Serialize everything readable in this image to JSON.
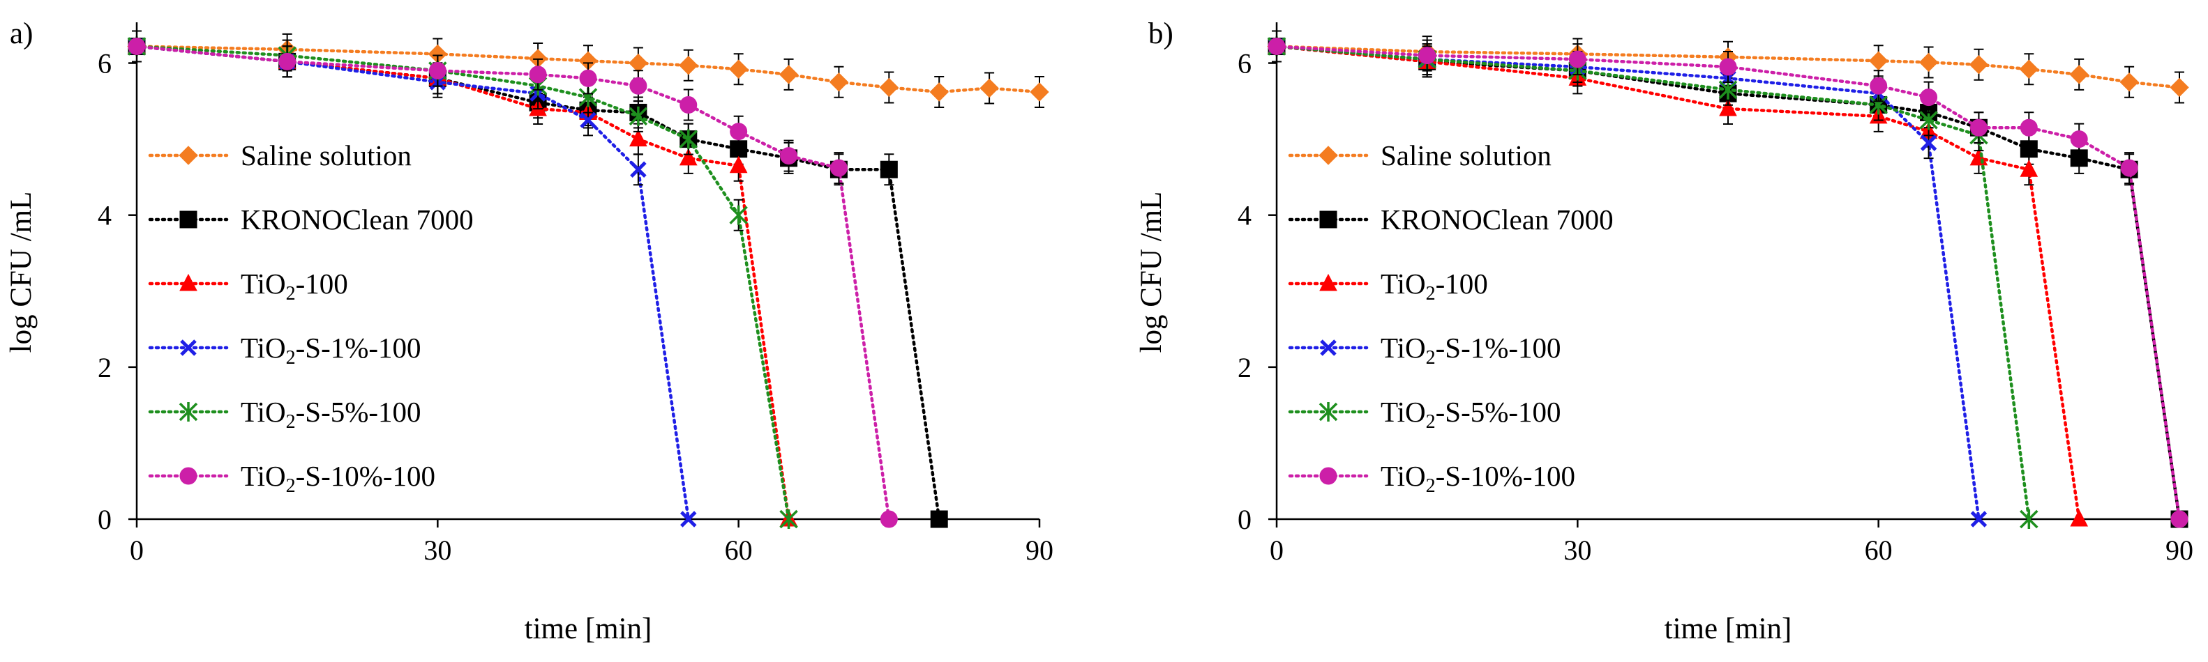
{
  "chart_data": [
    {
      "type": "line",
      "panel_label": "a)",
      "xlabel": "time [min]",
      "ylabel": "log CFU /mL",
      "xlim": [
        0,
        90
      ],
      "ylim": [
        0,
        6.5
      ],
      "xticks": [
        "0",
        "30",
        "60",
        "90"
      ],
      "yticks": [
        "0",
        "2",
        "4",
        "6"
      ],
      "legend_position": "left",
      "series": [
        {
          "name": "Saline solution",
          "marker": "diamond",
          "color": "#f47c20",
          "x": [
            0,
            15,
            30,
            40,
            45,
            50,
            55,
            60,
            65,
            70,
            75,
            80,
            85,
            90
          ],
          "y": [
            6.22,
            6.18,
            6.12,
            6.06,
            6.03,
            6.0,
            5.97,
            5.92,
            5.85,
            5.75,
            5.68,
            5.62,
            5.67,
            5.62
          ]
        },
        {
          "name": "KRONOClean 7000",
          "marker": "square",
          "color": "#000000",
          "x": [
            0,
            15,
            30,
            40,
            45,
            50,
            55,
            60,
            65,
            70,
            75,
            80
          ],
          "y": [
            6.22,
            6.02,
            5.8,
            5.48,
            5.38,
            5.35,
            5.0,
            4.87,
            4.75,
            4.6,
            4.6,
            0.0
          ]
        },
        {
          "name": "TiO2-100",
          "marker": "triangle",
          "color": "#ff0000",
          "x": [
            0,
            15,
            30,
            40,
            45,
            50,
            55,
            60,
            65
          ],
          "y": [
            6.22,
            6.02,
            5.8,
            5.4,
            5.35,
            5.0,
            4.75,
            4.65,
            0.0
          ]
        },
        {
          "name": "TiO2-S-1%-100",
          "marker": "x",
          "color": "#1f1fe6",
          "x": [
            0,
            15,
            30,
            40,
            45,
            50,
            55
          ],
          "y": [
            6.22,
            6.02,
            5.75,
            5.6,
            5.25,
            4.6,
            0.0
          ]
        },
        {
          "name": "TiO2-S-5%-100",
          "marker": "asterisk",
          "color": "#1e8f1e",
          "x": [
            0,
            15,
            30,
            40,
            45,
            50,
            55,
            60,
            65
          ],
          "y": [
            6.22,
            6.1,
            5.9,
            5.7,
            5.55,
            5.3,
            5.0,
            4.0,
            0.0
          ]
        },
        {
          "name": "TiO2-S-10%-100",
          "marker": "circle",
          "color": "#cc1fa8",
          "x": [
            0,
            15,
            30,
            40,
            45,
            50,
            55,
            60,
            65,
            70,
            75
          ],
          "y": [
            6.22,
            6.02,
            5.9,
            5.85,
            5.8,
            5.7,
            5.45,
            5.1,
            4.78,
            4.62,
            0.0
          ]
        }
      ]
    },
    {
      "type": "line",
      "panel_label": "b)",
      "xlabel": "time [min]",
      "ylabel": "log CFU /mL",
      "xlim": [
        0,
        90
      ],
      "ylim": [
        0,
        6.5
      ],
      "xticks": [
        "0",
        "30",
        "60",
        "90"
      ],
      "yticks": [
        "0",
        "2",
        "4",
        "6"
      ],
      "legend_position": "left",
      "series": [
        {
          "name": "Saline solution",
          "marker": "diamond",
          "color": "#f47c20",
          "x": [
            0,
            15,
            30,
            45,
            60,
            65,
            70,
            75,
            80,
            85,
            90
          ],
          "y": [
            6.22,
            6.15,
            6.12,
            6.08,
            6.03,
            6.01,
            5.98,
            5.92,
            5.85,
            5.75,
            5.68
          ]
        },
        {
          "name": "KRONOClean 7000",
          "marker": "square",
          "color": "#000000",
          "x": [
            0,
            15,
            30,
            45,
            60,
            65,
            70,
            75,
            80,
            85,
            90
          ],
          "y": [
            6.22,
            6.02,
            5.9,
            5.6,
            5.45,
            5.35,
            5.15,
            4.87,
            4.75,
            4.6,
            0.0
          ]
        },
        {
          "name": "TiO2-100",
          "marker": "triangle",
          "color": "#ff0000",
          "x": [
            0,
            15,
            30,
            45,
            60,
            65,
            70,
            75,
            80
          ],
          "y": [
            6.22,
            6.02,
            5.8,
            5.4,
            5.3,
            5.1,
            4.75,
            4.6,
            0.0
          ]
        },
        {
          "name": "TiO2-S-1%-100",
          "marker": "x",
          "color": "#1f1fe6",
          "x": [
            0,
            15,
            30,
            45,
            60,
            65,
            70
          ],
          "y": [
            6.22,
            6.05,
            5.95,
            5.8,
            5.6,
            4.95,
            0.0
          ]
        },
        {
          "name": "TiO2-S-5%-100",
          "marker": "asterisk",
          "color": "#1e8f1e",
          "x": [
            0,
            15,
            30,
            45,
            60,
            65,
            70,
            75
          ],
          "y": [
            6.22,
            6.05,
            5.9,
            5.65,
            5.45,
            5.25,
            5.05,
            0.0
          ]
        },
        {
          "name": "TiO2-S-10%-100",
          "marker": "circle",
          "color": "#cc1fa8",
          "x": [
            0,
            15,
            30,
            45,
            60,
            65,
            70,
            75,
            80,
            85,
            90
          ],
          "y": [
            6.22,
            6.1,
            6.05,
            5.95,
            5.7,
            5.55,
            5.15,
            5.15,
            5.0,
            4.62,
            0.0
          ]
        }
      ]
    }
  ]
}
